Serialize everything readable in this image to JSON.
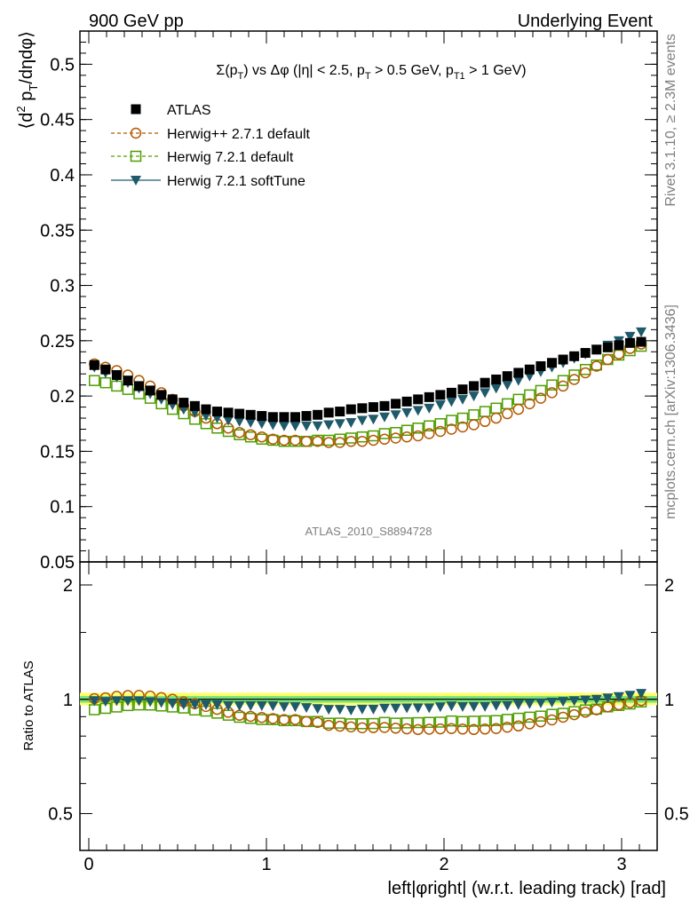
{
  "header": {
    "left": "900 GeV pp",
    "right": "Underlying Event"
  },
  "side_labels": {
    "rivet": "Rivet 3.1.10, ≥ 2.3M events",
    "mcplots": "mcplots.cern.ch [arXiv:1306.3436]"
  },
  "chart_data": {
    "type": "scatter",
    "title": "Σ(p_T) vs Δφ (|η| < 2.5, p_T > 0.5 GeV, p_T1 > 1 GeV)",
    "title_parts": {
      "a": "Σ(p",
      "a_sub": "T",
      "b": ") vs Δφ (|η| < 2.5, p",
      "b_sub": "T",
      "c": " > 0.5 GeV, p",
      "c_sub": "T1",
      "d": " > 1 GeV)"
    },
    "ylabel": "⟨d² p_T/dηdφ⟩",
    "ylabel_parts": {
      "a": "⟨d",
      "sup": "2",
      "b": " p",
      "sub": "T",
      "c": "/dηdφ⟩"
    },
    "xlabel": "left|φright| (w.r.t. leading track) [rad]",
    "ratio_ylabel": "Ratio to ATLAS",
    "watermark": "ATLAS_2010_S8894728",
    "xlim": [
      -0.05,
      3.2
    ],
    "ylim": [
      0.05,
      0.53
    ],
    "ratio_ylim": [
      0.4,
      2.3
    ],
    "ratio_scale": "log",
    "x_ticks": [
      "0",
      "1",
      "2",
      "3"
    ],
    "y_ticks": [
      "0.05",
      "0.1",
      "0.15",
      "0.2",
      "0.25",
      "0.3",
      "0.35",
      "0.4",
      "0.45",
      "0.5"
    ],
    "ratio_ticks": [
      "0.5",
      "1",
      "2"
    ],
    "legend_position": "top-left",
    "x": [
      0.0314,
      0.0942,
      0.1571,
      0.2199,
      0.2827,
      0.3456,
      0.4084,
      0.4712,
      0.5341,
      0.5969,
      0.6597,
      0.7226,
      0.7854,
      0.8482,
      0.9111,
      0.9739,
      1.0367,
      1.0996,
      1.1624,
      1.2252,
      1.2881,
      1.3509,
      1.4137,
      1.4765,
      1.5394,
      1.6022,
      1.665,
      1.7279,
      1.7907,
      1.8535,
      1.9164,
      1.9792,
      2.042,
      2.1049,
      2.1677,
      2.2305,
      2.2934,
      2.3562,
      2.419,
      2.4819,
      2.5447,
      2.6075,
      2.6704,
      2.7332,
      2.796,
      2.8588,
      2.9217,
      2.9845,
      3.0473,
      3.1102
    ],
    "series": [
      {
        "name": "ATLAS",
        "color": "#000000",
        "marker": "square-filled",
        "values": [
          0.228,
          0.224,
          0.219,
          0.214,
          0.209,
          0.205,
          0.201,
          0.197,
          0.194,
          0.191,
          0.188,
          0.186,
          0.185,
          0.184,
          0.183,
          0.182,
          0.181,
          0.181,
          0.181,
          0.182,
          0.183,
          0.185,
          0.186,
          0.188,
          0.189,
          0.19,
          0.191,
          0.193,
          0.195,
          0.197,
          0.199,
          0.201,
          0.203,
          0.206,
          0.209,
          0.212,
          0.215,
          0.218,
          0.221,
          0.224,
          0.227,
          0.23,
          0.233,
          0.236,
          0.239,
          0.242,
          0.244,
          0.246,
          0.248,
          0.249
        ]
      },
      {
        "name": "Herwig++ 2.7.1 default",
        "color": "#b35900",
        "marker": "circle-open",
        "values": [
          0.229,
          0.226,
          0.223,
          0.219,
          0.214,
          0.209,
          0.203,
          0.197,
          0.191,
          0.186,
          0.18,
          0.175,
          0.171,
          0.167,
          0.165,
          0.163,
          0.161,
          0.16,
          0.16,
          0.159,
          0.159,
          0.158,
          0.158,
          0.159,
          0.159,
          0.16,
          0.161,
          0.162,
          0.163,
          0.164,
          0.166,
          0.168,
          0.17,
          0.172,
          0.174,
          0.177,
          0.18,
          0.184,
          0.188,
          0.193,
          0.198,
          0.203,
          0.209,
          0.215,
          0.221,
          0.227,
          0.233,
          0.238,
          0.243,
          0.247
        ]
      },
      {
        "name": "Herwig 7.2.1 default",
        "color": "#4f9e00",
        "marker": "square-open",
        "values": [
          0.214,
          0.212,
          0.209,
          0.206,
          0.202,
          0.198,
          0.193,
          0.188,
          0.184,
          0.179,
          0.175,
          0.171,
          0.168,
          0.165,
          0.163,
          0.161,
          0.16,
          0.159,
          0.159,
          0.159,
          0.16,
          0.16,
          0.161,
          0.162,
          0.163,
          0.164,
          0.166,
          0.167,
          0.169,
          0.171,
          0.173,
          0.175,
          0.178,
          0.18,
          0.183,
          0.186,
          0.189,
          0.193,
          0.197,
          0.201,
          0.205,
          0.21,
          0.214,
          0.219,
          0.224,
          0.228,
          0.233,
          0.237,
          0.241,
          0.245
        ]
      },
      {
        "name": "Herwig 7.2.1 softTune",
        "color": "#1f5a6a",
        "marker": "triangle-down-filled",
        "values": [
          0.226,
          0.221,
          0.217,
          0.212,
          0.207,
          0.202,
          0.197,
          0.192,
          0.188,
          0.185,
          0.182,
          0.18,
          0.178,
          0.177,
          0.176,
          0.175,
          0.174,
          0.173,
          0.173,
          0.173,
          0.173,
          0.174,
          0.175,
          0.176,
          0.178,
          0.179,
          0.181,
          0.183,
          0.185,
          0.187,
          0.189,
          0.192,
          0.195,
          0.197,
          0.2,
          0.203,
          0.207,
          0.21,
          0.214,
          0.218,
          0.222,
          0.226,
          0.23,
          0.234,
          0.238,
          0.242,
          0.246,
          0.25,
          0.254,
          0.258
        ]
      }
    ],
    "ratio_band_color": "#ffff66",
    "ratio_band_inner_color": "#7be37b"
  }
}
